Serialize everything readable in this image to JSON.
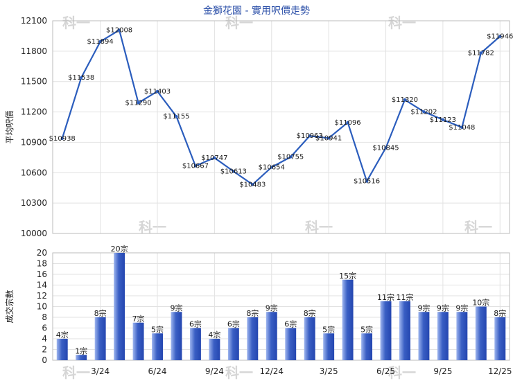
{
  "title": "金獅花園 - 實用呎價走勢",
  "watermark": "科一",
  "colors": {
    "line": "#2b5dbd",
    "bar_light": "#9fb6ef",
    "bar_dark": "#2446b0",
    "grid": "#e2e2e2",
    "title": "#2b4fa8"
  },
  "chart_data": [
    {
      "type": "line",
      "ylabel": "平均呎價",
      "ylim": [
        10000,
        12100
      ],
      "yticks": [
        "10000",
        "10300",
        "10600",
        "10900",
        "11200",
        "11500",
        "11800",
        "12100"
      ],
      "grid": true,
      "values": [
        10938,
        11538,
        11894,
        12008,
        11290,
        11403,
        11155,
        10667,
        10747,
        10613,
        10483,
        10654,
        10755,
        10963,
        10941,
        11096,
        10516,
        10845,
        11320,
        11202,
        11123,
        11048,
        11782,
        11946
      ],
      "labels": [
        "$10938",
        "$11538",
        "$11894",
        "$12008",
        "$11290",
        "$11403",
        "$11155",
        "$10667",
        "$10747",
        "$10613",
        "$10483",
        "$10654",
        "$10755",
        "$10963",
        "$10941",
        "$11096",
        "$10516",
        "$10845",
        "$11320",
        "$11202",
        "$11123",
        "$11048",
        "$11782",
        "$11946"
      ]
    },
    {
      "type": "bar",
      "ylabel": "成交宗數",
      "ylim": [
        0,
        20
      ],
      "yticks": [
        "0",
        "2",
        "4",
        "6",
        "8",
        "10",
        "12",
        "14",
        "16",
        "18",
        "20"
      ],
      "grid": true,
      "categories": [
        "",
        "",
        "3/24",
        "",
        "",
        "6/24",
        "",
        "",
        "9/24",
        "",
        "",
        "12/24",
        "",
        "",
        "3/25",
        "",
        "",
        "6/25",
        "",
        "",
        "9/25",
        "",
        "",
        "12/25"
      ],
      "values": [
        4,
        1,
        8,
        20,
        7,
        5,
        9,
        6,
        4,
        6,
        8,
        9,
        6,
        8,
        5,
        15,
        5,
        11,
        11,
        9,
        9,
        9,
        10,
        8
      ],
      "labels": [
        "4宗",
        "1宗",
        "8宗",
        "20宗",
        "7宗",
        "5宗",
        "9宗",
        "6宗",
        "4宗",
        "6宗",
        "8宗",
        "9宗",
        "6宗",
        "8宗",
        "5宗",
        "15宗",
        "5宗",
        "11宗",
        "11宗",
        "9宗",
        "9宗",
        "9宗",
        "10宗",
        "8宗"
      ]
    }
  ]
}
